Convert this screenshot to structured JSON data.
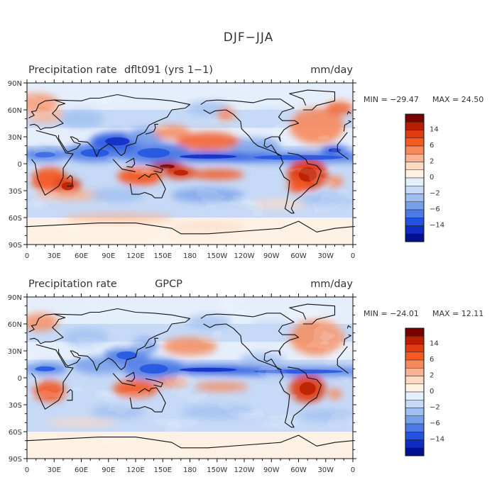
{
  "figure_title": "DJF−JJA",
  "colors": {
    "levels": [
      "#7a0000",
      "#b81d00",
      "#e03a10",
      "#f55a23",
      "#f78a5c",
      "#f9b393",
      "#fcd9c3",
      "#fdf1e4",
      "#e5eefb",
      "#c6d9f6",
      "#9fbff0",
      "#78a0ea",
      "#4c7be6",
      "#2253e0",
      "#0f2cc4",
      "#001190"
    ],
    "land": "#111111"
  },
  "colorbar_labels": [
    "14",
    "6",
    "2",
    "0",
    "−2",
    "−6",
    "−14"
  ],
  "x_ticks": [
    "0",
    "30E",
    "60E",
    "90E",
    "120E",
    "150E",
    "180",
    "150W",
    "120W",
    "90W",
    "60W",
    "30W",
    "0"
  ],
  "y_ticks": [
    "90N",
    "60N",
    "30N",
    "0",
    "30S",
    "60S",
    "90S"
  ],
  "panels": [
    {
      "left_label": "Precipitation rate",
      "center_label": "dflt091 (yrs 1−1)",
      "units": "mm/day",
      "min_label": "MIN = −29.47",
      "max_label": "MAX =  24.50"
    },
    {
      "left_label": "Precipitation rate",
      "center_label": "GPCP",
      "units": "mm/day",
      "min_label": "MIN = −24.01",
      "max_label": "MAX =  12.11"
    }
  ]
}
